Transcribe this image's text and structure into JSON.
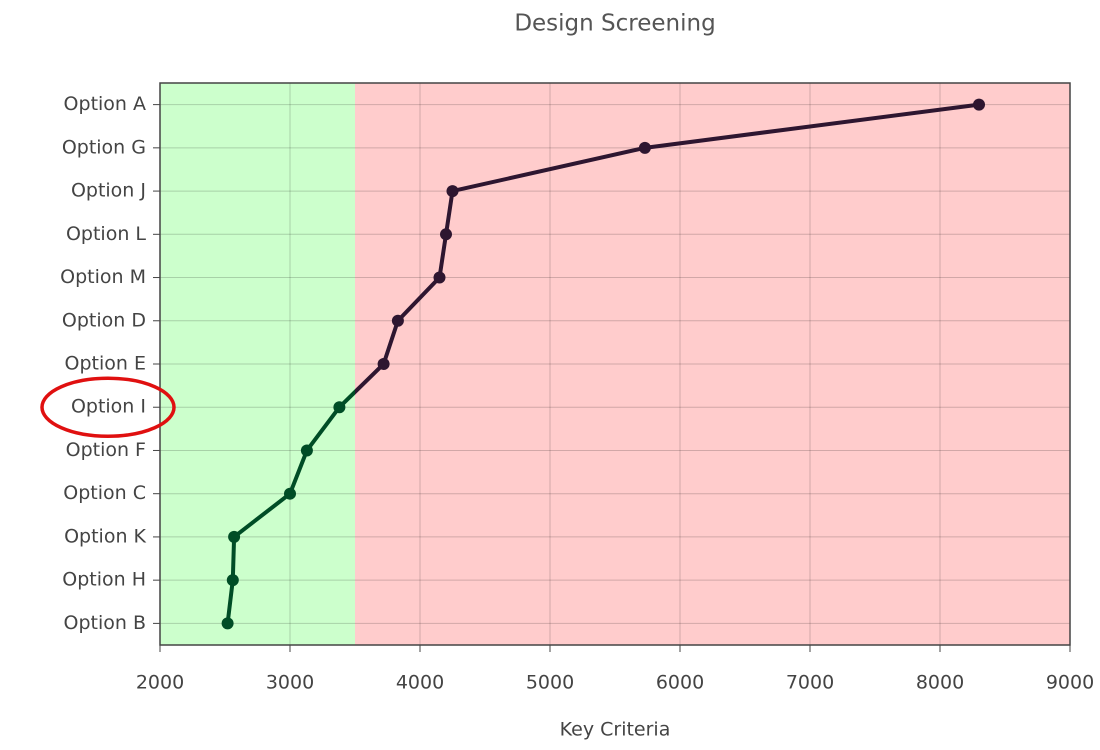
{
  "chart_data": {
    "type": "line",
    "orientation": "horizontal",
    "title": "Design Screening",
    "x_label": "Key Criteria",
    "categories": [
      "Option A",
      "Option G",
      "Option J",
      "Option L",
      "Option M",
      "Option D",
      "Option E",
      "Option I",
      "Option F",
      "Option C",
      "Option K",
      "Option H",
      "Option B"
    ],
    "values": [
      8300,
      5730,
      4250,
      4200,
      4150,
      3830,
      3720,
      3380,
      3130,
      3000,
      2570,
      2560,
      2520
    ],
    "threshold": 3500,
    "below_color": "#004d26",
    "above_color": "#2e1630",
    "below_region_color": "#ccffcc",
    "above_region_color": "#ffcccc",
    "highlight": "Option I",
    "highlight_color": "#e01010",
    "xlim": [
      2000,
      9000
    ],
    "xticks": [
      2000,
      3000,
      4000,
      5000,
      6000,
      7000,
      8000,
      9000
    ],
    "grid": true
  }
}
